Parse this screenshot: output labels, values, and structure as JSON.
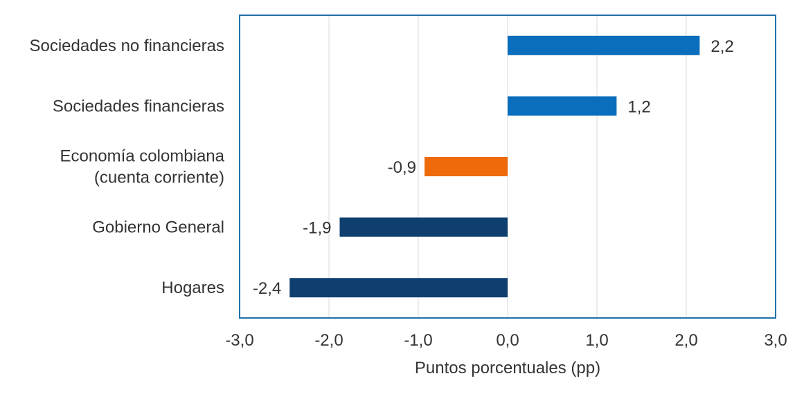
{
  "chart_data": {
    "type": "bar",
    "orientation": "horizontal",
    "categories": [
      [
        "Sociedades no financieras"
      ],
      [
        "Sociedades financieras"
      ],
      [
        "Economía colombiana",
        "(cuenta corriente)"
      ],
      [
        "Gobierno General"
      ],
      [
        "Hogares"
      ]
    ],
    "values": [
      2.15,
      1.22,
      -0.93,
      -1.88,
      -2.44
    ],
    "data_labels": [
      "2,2",
      "1,2",
      "-0,9",
      "-1,9",
      "-2,4"
    ],
    "bar_colors": [
      "#0a6ebd",
      "#0a6ebd",
      "#ee6a0a",
      "#0f3f6e",
      "#0f3f6e"
    ],
    "xlim": [
      -3,
      3
    ],
    "x_ticks": [
      -3,
      -2,
      -1,
      0,
      1,
      2,
      3
    ],
    "x_tick_labels": [
      "-3,0",
      "-2,0",
      "-1,0",
      "0,0",
      "1,0",
      "2,0",
      "3,0"
    ],
    "xlabel": "Puntos porcentuales (pp)",
    "grid": "vertical",
    "legend": "none",
    "colors": {
      "frame": "#1f6fa8",
      "grid": "#d9d9d9",
      "text": "#333333"
    }
  }
}
